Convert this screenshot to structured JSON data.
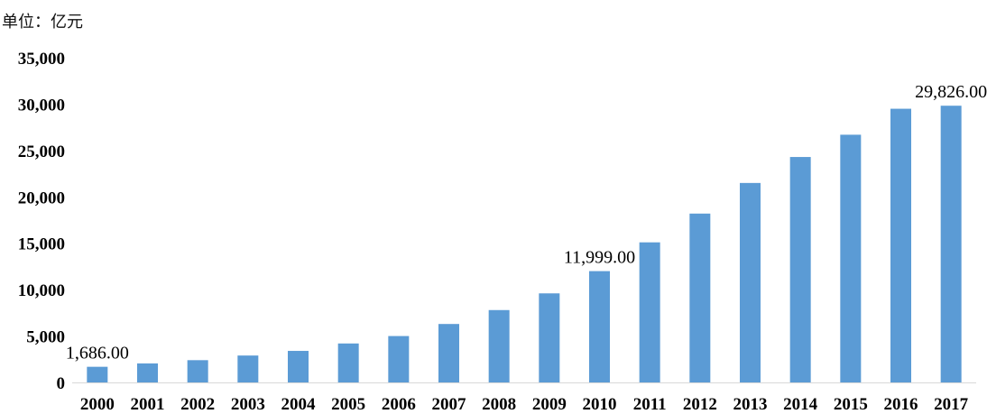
{
  "chart_data": {
    "type": "bar",
    "title": "",
    "unit_label": "单位：亿元",
    "xlabel": "",
    "ylabel": "",
    "ylim": [
      0,
      35000
    ],
    "yticks": [
      0,
      5000,
      10000,
      15000,
      20000,
      25000,
      30000,
      35000
    ],
    "ytick_labels": [
      "0",
      "5,000",
      "10,000",
      "15,000",
      "20,000",
      "25,000",
      "30,000",
      "35,000"
    ],
    "grid": false,
    "bar_color": "#5B9BD5",
    "categories": [
      "2000",
      "2001",
      "2002",
      "2003",
      "2004",
      "2005",
      "2006",
      "2007",
      "2008",
      "2009",
      "2010",
      "2011",
      "2012",
      "2013",
      "2014",
      "2015",
      "2016",
      "2017"
    ],
    "values": [
      1686,
      2050,
      2400,
      2900,
      3400,
      4200,
      5000,
      6300,
      7800,
      9600,
      11999,
      15100,
      18200,
      21500,
      24300,
      26700,
      29500,
      29826
    ],
    "data_labels": [
      {
        "index": 0,
        "text": "1,686.00"
      },
      {
        "index": 10,
        "text": "11,999.00"
      },
      {
        "index": 17,
        "text": "29,826.00"
      }
    ]
  }
}
